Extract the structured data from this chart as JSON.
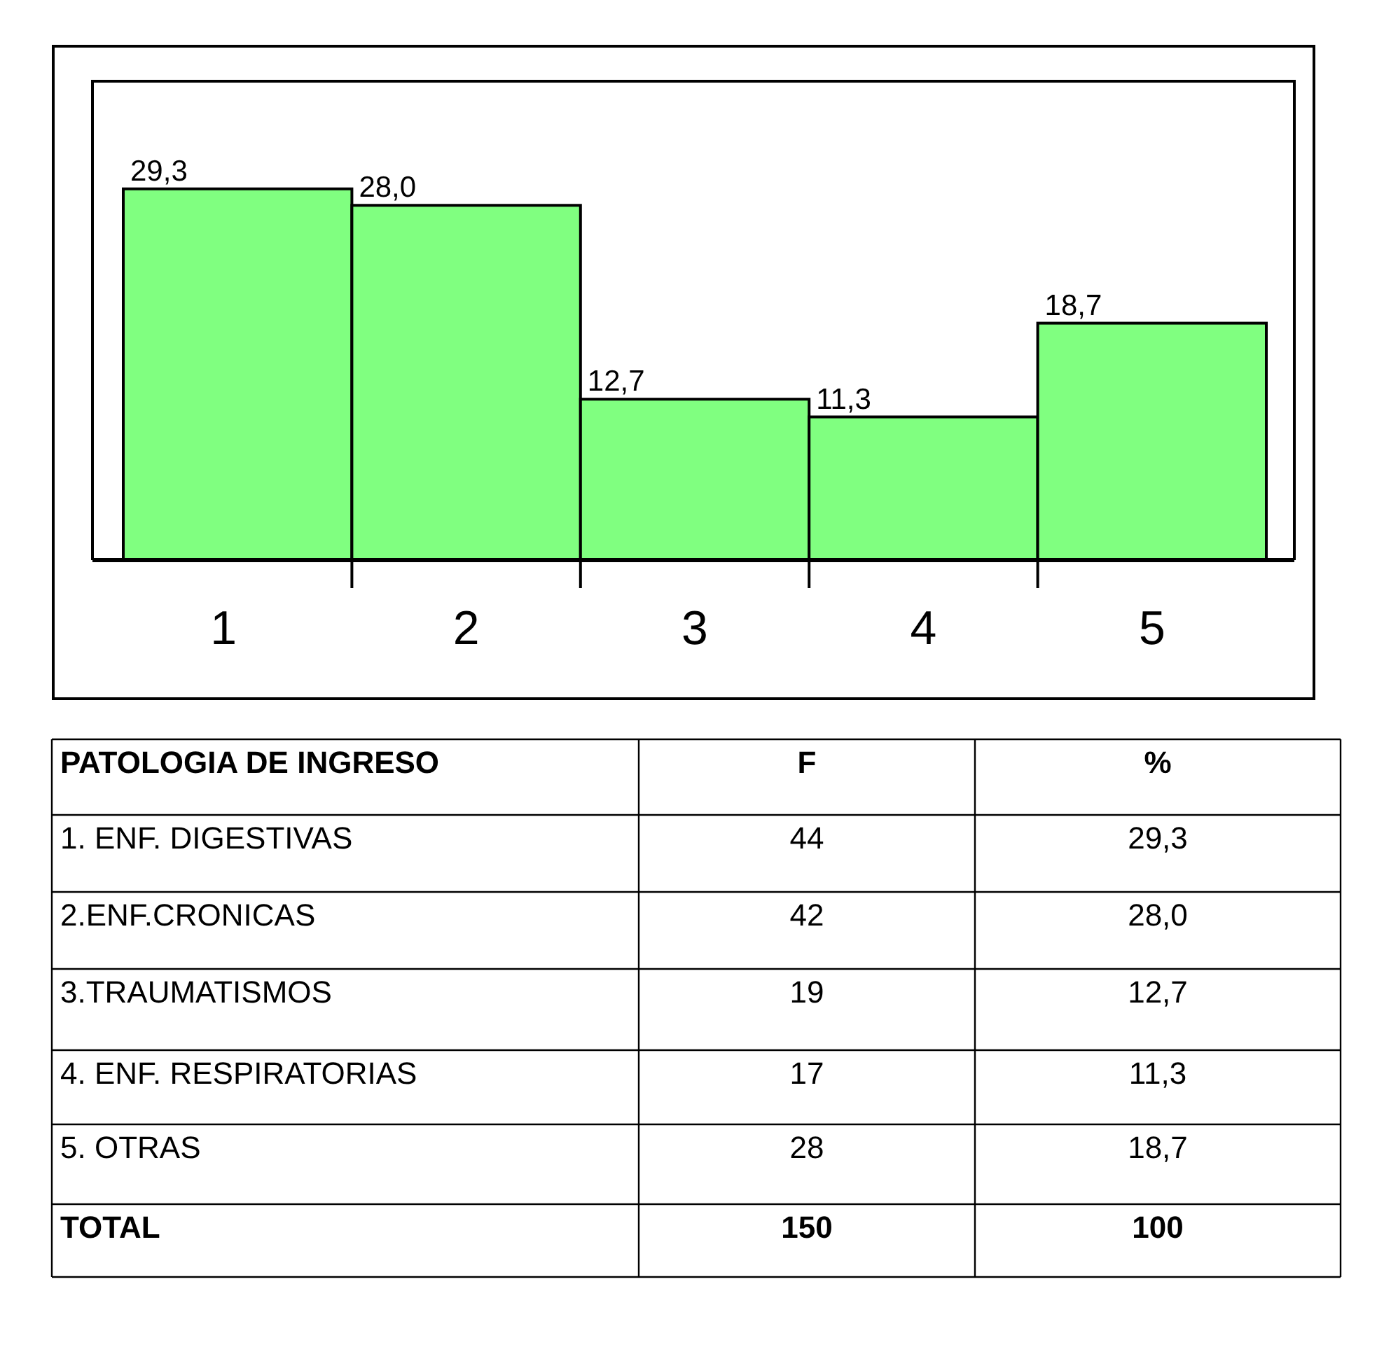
{
  "chart_data": [
    {
      "type": "bar",
      "categories": [
        "1",
        "2",
        "3",
        "4",
        "5"
      ],
      "values": [
        29.3,
        28.0,
        12.7,
        11.3,
        18.7
      ],
      "value_labels": [
        "29,3",
        "28,0",
        "12,7",
        "11,3",
        "18,7"
      ],
      "color": "#80ff80"
    },
    {
      "type": "other",
      "xlabel": "PATOLOGIA DE INGRESO",
      "categories": [
        "1. ENF. DIGESTIVAS",
        "2.ENF.CRONICAS",
        "3.TRAUMATISMOS",
        "4. ENF. RESPIRATORIAS",
        "5. OTRAS"
      ],
      "series": [
        {
          "name": "F",
          "values": [
            44,
            42,
            19,
            17,
            28
          ],
          "value_labels": [
            "44",
            "42",
            "19",
            "17",
            "28"
          ]
        },
        {
          "name": "%",
          "values": [
            29.3,
            28.0,
            12.7,
            11.3,
            18.7
          ],
          "value_labels": [
            "29,3",
            "28,0",
            "12,7",
            "11,3",
            "18,7"
          ]
        }
      ],
      "annotations": [
        "TOTAL"
      ],
      "totals": [
        "150",
        "100"
      ]
    }
  ]
}
